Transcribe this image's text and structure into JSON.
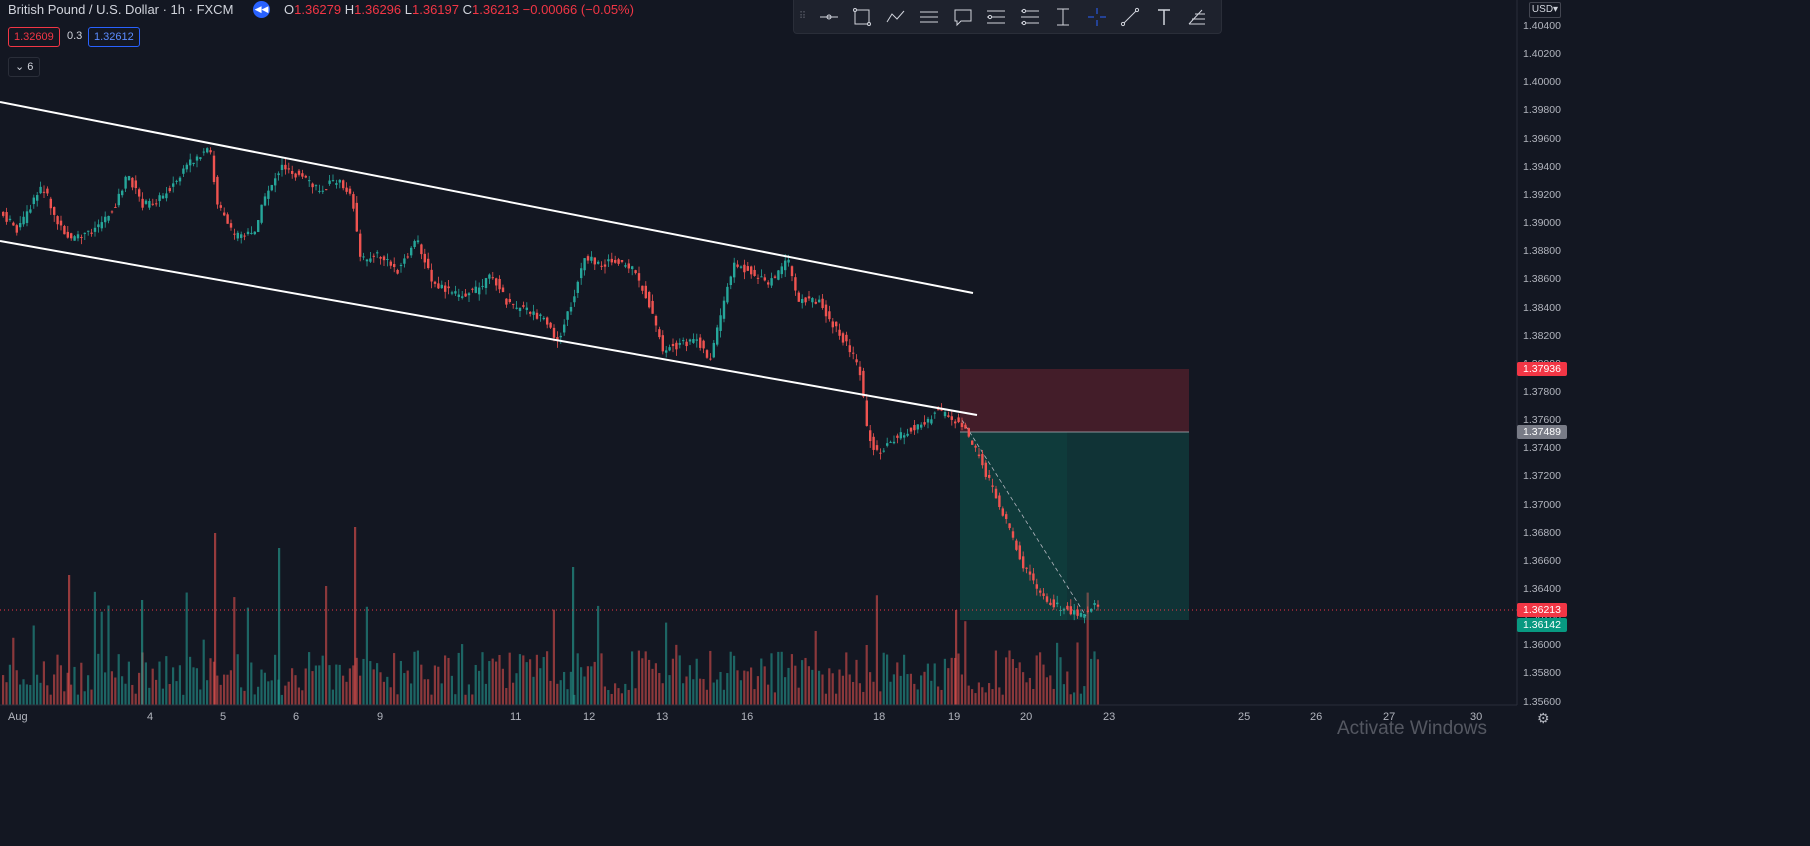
{
  "header": {
    "symbol": "British Pound / U.S. Dollar · 1h · FXCM",
    "open_label": "O",
    "open": "1.36279",
    "high_label": "H",
    "high": "1.36296",
    "low_label": "L",
    "low": "1.36197",
    "close_label": "C",
    "close": "1.36213",
    "change": "−0.00066 (−0.05%)",
    "replay_icon": "rewind-icon"
  },
  "quote": {
    "bid": "1.32609",
    "spread": "0.3",
    "ask": "1.32612",
    "indicators_count": "6"
  },
  "toolbar": {
    "items": [
      "drag-handle-icon",
      "horizontal-ray-icon",
      "rectangle-icon",
      "path-icon",
      "parallel-channel-icon",
      "callout-icon",
      "long-position-icon",
      "short-position-icon",
      "price-range-icon",
      "crosshair-icon",
      "trend-line-icon",
      "text-icon",
      "fib-retracement-icon"
    ]
  },
  "price_axis": {
    "currency": "USD",
    "ticks": [
      "1.40400",
      "1.40200",
      "1.40000",
      "1.39800",
      "1.39600",
      "1.39400",
      "1.39200",
      "1.39000",
      "1.38800",
      "1.38600",
      "1.38400",
      "1.38200",
      "1.38000",
      "1.37800",
      "1.37600",
      "1.37400",
      "1.37200",
      "1.37000",
      "1.36800",
      "1.36600",
      "1.36400",
      "1.36200",
      "1.36000",
      "1.35800",
      "1.35600"
    ],
    "stop_loss_tag": "1.37936",
    "entry_tag": "1.37489",
    "last_price_tag": "1.36213",
    "target_tag": "1.36142"
  },
  "time_axis": {
    "ticks": [
      "Aug",
      "4",
      "5",
      "6",
      "9",
      "11",
      "12",
      "13",
      "16",
      "18",
      "19",
      "20",
      "23",
      "25",
      "26",
      "27",
      "30"
    ]
  },
  "colors": {
    "background": "#131722",
    "up": "#26a69a",
    "down": "#ef5350",
    "stop_zone": "#f23645",
    "profit_zone": "#089981",
    "last_price": "#f23645"
  },
  "watermark": "Activate Windows",
  "settings_icon": "gear-icon"
}
